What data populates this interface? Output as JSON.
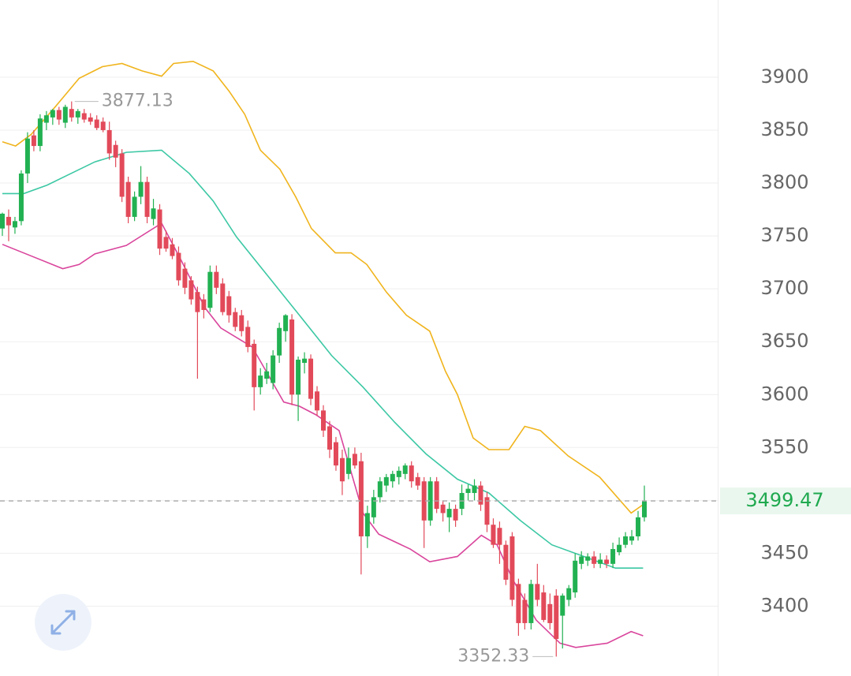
{
  "chart_data": {
    "type": "candlestick",
    "up_color": "#22b152",
    "down_color": "#e24a5a",
    "open": [
      3757,
      3768,
      3758,
      3764,
      3809,
      3845,
      3835,
      3857,
      3862,
      3869,
      3857,
      3870,
      3862,
      3866,
      3862,
      3860,
      3858,
      3850,
      3836,
      3828,
      3801,
      3768,
      3787,
      3801,
      3766,
      3775,
      3749,
      3742,
      3734,
      3719,
      3708,
      3697,
      3690,
      3682,
      3716,
      3705,
      3693,
      3678,
      3675,
      3664,
      3648,
      3607,
      3615,
      3611,
      3637,
      3660,
      3671,
      3600,
      3630,
      3634,
      3603,
      3585,
      3570,
      3555,
      3540,
      3525,
      3544,
      3537,
      3466,
      3484,
      3503,
      3514,
      3518,
      3522,
      3525,
      3533,
      3522,
      3518,
      3481,
      3518,
      3496,
      3484,
      3492,
      3492,
      3507,
      3507,
      3514,
      3503,
      3477,
      3474,
      3458,
      3466,
      3421,
      3406,
      3384,
      3421,
      3413,
      3402,
      3410,
      3391,
      3406,
      3413,
      3440,
      3443,
      3447,
      3440,
      3444,
      3440,
      3451,
      3458,
      3462,
      3466,
      3484
    ],
    "high": [
      3772,
      3775,
      3768,
      3812,
      3848,
      3850,
      3865,
      3868,
      3870,
      3872,
      3874,
      3877.13,
      3870,
      3870,
      3866,
      3864,
      3862,
      3858,
      3840,
      3832,
      3806,
      3792,
      3816,
      3806,
      3785,
      3780,
      3755,
      3748,
      3740,
      3725,
      3712,
      3702,
      3695,
      3722,
      3722,
      3710,
      3698,
      3682,
      3680,
      3670,
      3652,
      3625,
      3630,
      3642,
      3668,
      3676,
      3676,
      3636,
      3640,
      3638,
      3608,
      3590,
      3575,
      3560,
      3548,
      3550,
      3550,
      3545,
      3495,
      3510,
      3522,
      3525,
      3528,
      3532,
      3535,
      3537,
      3526,
      3522,
      3522,
      3522,
      3500,
      3498,
      3496,
      3515,
      3515,
      3520,
      3518,
      3508,
      3483,
      3480,
      3462,
      3470,
      3426,
      3412,
      3425,
      3440,
      3420,
      3412,
      3416,
      3412,
      3420,
      3450,
      3452,
      3450,
      3452,
      3450,
      3448,
      3460,
      3465,
      3470,
      3472,
      3490,
      3514
    ],
    "low": [
      3750,
      3745,
      3752,
      3760,
      3800,
      3830,
      3830,
      3850,
      3855,
      3855,
      3852,
      3858,
      3856,
      3857,
      3855,
      3850,
      3848,
      3822,
      3815,
      3782,
      3762,
      3764,
      3780,
      3762,
      3760,
      3732,
      3735,
      3728,
      3703,
      3695,
      3685,
      3615,
      3672,
      3678,
      3695,
      3675,
      3668,
      3660,
      3655,
      3640,
      3585,
      3600,
      3610,
      3605,
      3630,
      3650,
      3590,
      3575,
      3620,
      3590,
      3580,
      3560,
      3540,
      3528,
      3505,
      3520,
      3530,
      3430,
      3455,
      3478,
      3498,
      3508,
      3512,
      3515,
      3520,
      3512,
      3510,
      3455,
      3476,
      3488,
      3480,
      3470,
      3475,
      3486,
      3500,
      3500,
      3490,
      3470,
      3455,
      3440,
      3420,
      3400,
      3372,
      3378,
      3378,
      3400,
      3385,
      3378,
      3352.33,
      3360,
      3400,
      3408,
      3435,
      3438,
      3436,
      3436,
      3436,
      3436,
      3448,
      3455,
      3458,
      3462,
      3480
    ],
    "close": [
      3771,
      3760,
      3764,
      3809,
      3842,
      3835,
      3861,
      3864,
      3869,
      3860,
      3872,
      3862,
      3868,
      3860,
      3858,
      3852,
      3850,
      3828,
      3824,
      3787,
      3768,
      3787,
      3801,
      3768,
      3776,
      3738,
      3738,
      3731,
      3708,
      3701,
      3690,
      3678,
      3680,
      3716,
      3701,
      3678,
      3675,
      3664,
      3660,
      3645,
      3607,
      3618,
      3622,
      3637,
      3663,
      3675,
      3600,
      3633,
      3634,
      3596,
      3585,
      3566,
      3548,
      3533,
      3518,
      3540,
      3533,
      3466,
      3488,
      3503,
      3518,
      3522,
      3525,
      3528,
      3533,
      3518,
      3514,
      3481,
      3518,
      3492,
      3488,
      3492,
      3481,
      3507,
      3511,
      3514,
      3496,
      3477,
      3458,
      3458,
      3425,
      3406,
      3384,
      3384,
      3421,
      3406,
      3387,
      3384,
      3369,
      3410,
      3417,
      3443,
      3447,
      3447,
      3440,
      3444,
      3440,
      3454,
      3458,
      3466,
      3466,
      3484,
      3499.47
    ],
    "lines": [
      {
        "color": "#f0b41c",
        "x": [
          0,
          2.1,
          4.6,
          8.4,
          12.2,
          15.9,
          19,
          22.2,
          25.3,
          27.2,
          30.3,
          33.5,
          36,
          38.5,
          41,
          44.1,
          46.6,
          49.1,
          52.9,
          55.4,
          57.9,
          61,
          64.2,
          67.9,
          70.4,
          72.3,
          74.8,
          77.3,
          80.5,
          83,
          85.5,
          89.9,
          94.9,
          99.9,
          101.8
        ],
        "values": [
          3839,
          3835,
          3846,
          3872,
          3899,
          3910,
          3913,
          3906,
          3901,
          3913,
          3915,
          3906,
          3887,
          3865,
          3831,
          3813,
          3787,
          3757,
          3734,
          3734,
          3723,
          3697,
          3675,
          3660,
          3622,
          3600,
          3559,
          3548,
          3548,
          3570,
          3566,
          3542,
          3522,
          3488,
          3496
        ]
      },
      {
        "color": "#3cc8a4",
        "x": [
          0,
          3.4,
          7.1,
          10.9,
          14.7,
          19.7,
          25.3,
          29.7,
          33.5,
          37.2,
          42.2,
          47.2,
          52.3,
          57.3,
          62.3,
          67.3,
          72.3,
          77.3,
          82.3,
          87.3,
          92.4,
          97.4,
          101.8
        ],
        "values": [
          3790,
          3790,
          3798,
          3809,
          3820,
          3829,
          3831,
          3809,
          3783,
          3749,
          3712,
          3675,
          3637,
          3607,
          3574,
          3544,
          3520,
          3507,
          3481,
          3458,
          3447,
          3436,
          3436
        ]
      },
      {
        "color": "#d9459c",
        "x": [
          0,
          4.6,
          9.6,
          12.2,
          14.7,
          19.7,
          25.3,
          28.4,
          32.2,
          34.7,
          39.7,
          42.2,
          44.7,
          47.2,
          49.8,
          53.5,
          57.3,
          59.8,
          64.8,
          67.9,
          72.3,
          76.1,
          78.6,
          81.1,
          84.8,
          88.6,
          91.1,
          96.1,
          99.9,
          101.8
        ],
        "values": [
          3742,
          3731,
          3719,
          3723,
          3733,
          3741,
          3762,
          3727,
          3682,
          3663,
          3645,
          3619,
          3593,
          3589,
          3581,
          3566,
          3488,
          3468,
          3454,
          3442,
          3447,
          3467,
          3458,
          3425,
          3387,
          3365,
          3361,
          3365,
          3376,
          3372
        ]
      }
    ],
    "ylim": [
      3334,
      3973
    ],
    "yticks": [
      3400,
      3450,
      3500,
      3550,
      3600,
      3650,
      3700,
      3750,
      3800,
      3850,
      3900
    ],
    "grid": true,
    "last_price_color": "#1fa94f"
  }
}
